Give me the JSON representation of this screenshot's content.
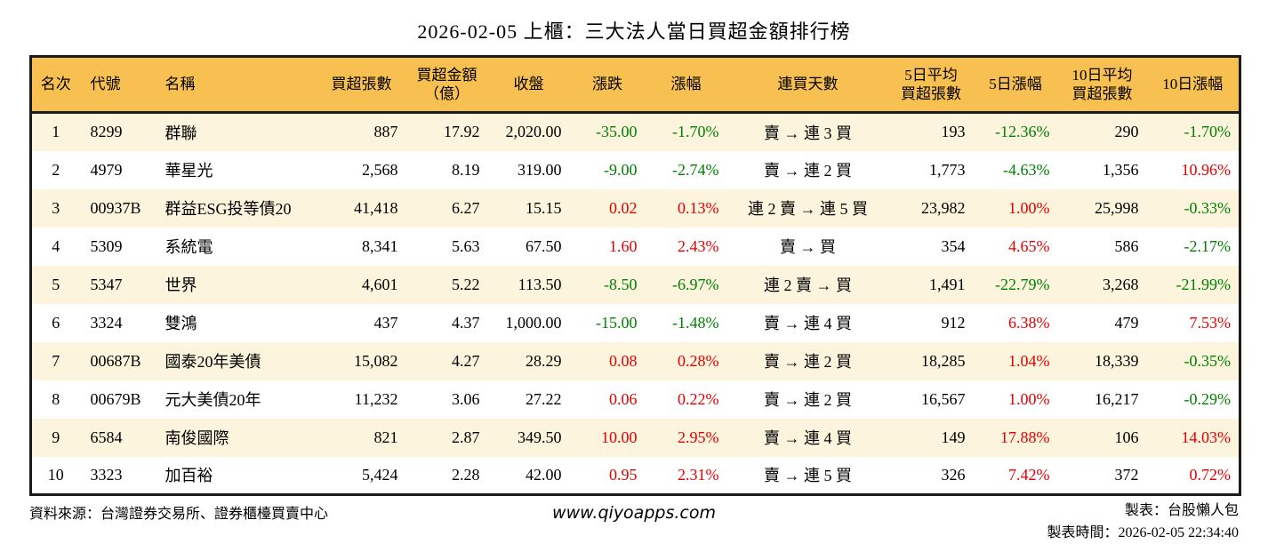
{
  "title": "2026-02-05 上櫃：三大法人當日買超金額排行榜",
  "colors": {
    "up_red": "#e60000",
    "down_green": "#008000",
    "header_bg": "#f7c050",
    "row_alt_bg": "#fcf4dd",
    "table_border": "#1b1b1b"
  },
  "chart_data": {
    "type": "table",
    "title": "2026-02-05 上櫃：三大法人當日買超金額排行榜",
    "columns": [
      {
        "key": "rank",
        "label": "名次",
        "align": "center"
      },
      {
        "key": "code",
        "label": "代號",
        "align": "left"
      },
      {
        "key": "name",
        "label": "名稱",
        "align": "left"
      },
      {
        "key": "vol",
        "label": "買超張數",
        "align": "right"
      },
      {
        "key": "amt",
        "label": "買超金額\n（億）",
        "align": "right"
      },
      {
        "key": "close",
        "label": "收盤",
        "align": "right"
      },
      {
        "key": "chg",
        "label": "漲跌",
        "align": "right",
        "signed": true
      },
      {
        "key": "chg_pct",
        "label": "漲幅",
        "align": "right",
        "signed": true
      },
      {
        "key": "streak",
        "label": "連買天數",
        "align": "center"
      },
      {
        "key": "avg5",
        "label": "5日平均\n買超張數",
        "align": "right"
      },
      {
        "key": "pct5",
        "label": "5日漲幅",
        "align": "right",
        "signed": true
      },
      {
        "key": "avg10",
        "label": "10日平均\n買超張數",
        "align": "right"
      },
      {
        "key": "pct10",
        "label": "10日漲幅",
        "align": "right",
        "signed": true
      }
    ],
    "rows": [
      {
        "rank": "1",
        "code": "8299",
        "name": "群聯",
        "vol": "887",
        "amt": "17.92",
        "close": "2,020.00",
        "chg": "-35.00",
        "chg_pct": "-1.70%",
        "streak": "賣 → 連 3 買",
        "avg5": "193",
        "pct5": "-12.36%",
        "avg10": "290",
        "pct10": "-1.70%"
      },
      {
        "rank": "2",
        "code": "4979",
        "name": "華星光",
        "vol": "2,568",
        "amt": "8.19",
        "close": "319.00",
        "chg": "-9.00",
        "chg_pct": "-2.74%",
        "streak": "賣 → 連 2 買",
        "avg5": "1,773",
        "pct5": "-4.63%",
        "avg10": "1,356",
        "pct10": "10.96%"
      },
      {
        "rank": "3",
        "code": "00937B",
        "name": "群益ESG投等債20",
        "vol": "41,418",
        "amt": "6.27",
        "close": "15.15",
        "chg": "0.02",
        "chg_pct": "0.13%",
        "streak": "連 2 賣 → 連 5 買",
        "avg5": "23,982",
        "pct5": "1.00%",
        "avg10": "25,998",
        "pct10": "-0.33%"
      },
      {
        "rank": "4",
        "code": "5309",
        "name": "系統電",
        "vol": "8,341",
        "amt": "5.63",
        "close": "67.50",
        "chg": "1.60",
        "chg_pct": "2.43%",
        "streak": "賣 → 買",
        "avg5": "354",
        "pct5": "4.65%",
        "avg10": "586",
        "pct10": "-2.17%"
      },
      {
        "rank": "5",
        "code": "5347",
        "name": "世界",
        "vol": "4,601",
        "amt": "5.22",
        "close": "113.50",
        "chg": "-8.50",
        "chg_pct": "-6.97%",
        "streak": "連 2 賣 → 買",
        "avg5": "1,491",
        "pct5": "-22.79%",
        "avg10": "3,268",
        "pct10": "-21.99%"
      },
      {
        "rank": "6",
        "code": "3324",
        "name": "雙鴻",
        "vol": "437",
        "amt": "4.37",
        "close": "1,000.00",
        "chg": "-15.00",
        "chg_pct": "-1.48%",
        "streak": "賣 → 連 4 買",
        "avg5": "912",
        "pct5": "6.38%",
        "avg10": "479",
        "pct10": "7.53%"
      },
      {
        "rank": "7",
        "code": "00687B",
        "name": "國泰20年美債",
        "vol": "15,082",
        "amt": "4.27",
        "close": "28.29",
        "chg": "0.08",
        "chg_pct": "0.28%",
        "streak": "賣 → 連 2 買",
        "avg5": "18,285",
        "pct5": "1.04%",
        "avg10": "18,339",
        "pct10": "-0.35%"
      },
      {
        "rank": "8",
        "code": "00679B",
        "name": "元大美債20年",
        "vol": "11,232",
        "amt": "3.06",
        "close": "27.22",
        "chg": "0.06",
        "chg_pct": "0.22%",
        "streak": "賣 → 連 2 買",
        "avg5": "16,567",
        "pct5": "1.00%",
        "avg10": "16,217",
        "pct10": "-0.29%"
      },
      {
        "rank": "9",
        "code": "6584",
        "name": "南俊國際",
        "vol": "821",
        "amt": "2.87",
        "close": "349.50",
        "chg": "10.00",
        "chg_pct": "2.95%",
        "streak": "賣 → 連 4 買",
        "avg5": "149",
        "pct5": "17.88%",
        "avg10": "106",
        "pct10": "14.03%"
      },
      {
        "rank": "10",
        "code": "3323",
        "name": "加百裕",
        "vol": "5,424",
        "amt": "2.28",
        "close": "42.00",
        "chg": "0.95",
        "chg_pct": "2.31%",
        "streak": "賣 → 連 5 買",
        "avg5": "326",
        "pct5": "7.42%",
        "avg10": "372",
        "pct10": "0.72%"
      }
    ]
  },
  "footer": {
    "source": "資料來源：台灣證券交易所、證券櫃檯買賣中心",
    "website": "www.qiyoapps.com",
    "maker": "製表：台股懶人包",
    "made_time": "製表時間：2026-02-05 22:34:40"
  }
}
